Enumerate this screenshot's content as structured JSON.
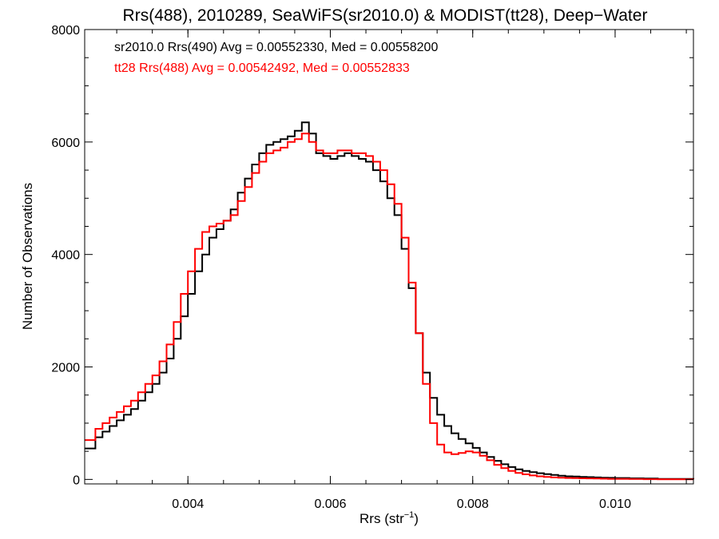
{
  "chart_data": {
    "type": "line",
    "step": true,
    "title": "Rrs(488), 2010289, SeaWiFS(sr2010.0) & MODIST(tt28), Deep−Water",
    "xlabel_main": "Rrs (str",
    "xlabel_sup": "−1",
    "xlabel_end": ")",
    "ylabel": "Number of Observations",
    "xlim": [
      0.00255,
      0.0111
    ],
    "ylim": [
      -80,
      8000
    ],
    "x_ticks": [
      {
        "value": 0.004,
        "label": "0.004"
      },
      {
        "value": 0.006,
        "label": "0.006"
      },
      {
        "value": 0.008,
        "label": "0.008"
      },
      {
        "value": 0.01,
        "label": "0.010"
      }
    ],
    "y_ticks": [
      {
        "value": 0,
        "label": "0"
      },
      {
        "value": 2000,
        "label": "2000"
      },
      {
        "value": 4000,
        "label": "4000"
      },
      {
        "value": 6000,
        "label": "6000"
      },
      {
        "value": 8000,
        "label": "8000"
      }
    ],
    "grid": false,
    "legend_position": "top-left",
    "series": [
      {
        "name": "sr2010.0 Rrs(490) Avg = 0.00552330, Med = 0.00558200",
        "color": "#000000",
        "x": [
          0.00255,
          0.0027,
          0.0028,
          0.0029,
          0.003,
          0.0031,
          0.0032,
          0.0033,
          0.0034,
          0.0035,
          0.0036,
          0.0037,
          0.0038,
          0.0039,
          0.004,
          0.0041,
          0.0042,
          0.0043,
          0.0044,
          0.0045,
          0.0046,
          0.0047,
          0.0048,
          0.0049,
          0.005,
          0.0051,
          0.0052,
          0.0053,
          0.0054,
          0.0055,
          0.0056,
          0.0057,
          0.0058,
          0.0059,
          0.006,
          0.0061,
          0.0062,
          0.0063,
          0.0064,
          0.0065,
          0.0066,
          0.0067,
          0.0068,
          0.0069,
          0.007,
          0.0071,
          0.0072,
          0.0073,
          0.0074,
          0.0075,
          0.0076,
          0.0077,
          0.0078,
          0.0079,
          0.008,
          0.0081,
          0.0082,
          0.0083,
          0.0084,
          0.0085,
          0.0086,
          0.0087,
          0.0088,
          0.0089,
          0.009,
          0.0091,
          0.0092,
          0.0093,
          0.0094,
          0.0095,
          0.0096,
          0.0097,
          0.0098,
          0.0099,
          0.01,
          0.0102,
          0.0104,
          0.0106,
          0.0108,
          0.0111
        ],
        "y": [
          550,
          750,
          850,
          950,
          1050,
          1150,
          1250,
          1400,
          1550,
          1700,
          1900,
          2150,
          2500,
          2900,
          3300,
          3700,
          4000,
          4300,
          4450,
          4600,
          4800,
          5100,
          5350,
          5600,
          5800,
          5950,
          6000,
          6050,
          6100,
          6200,
          6350,
          6150,
          5800,
          5750,
          5700,
          5750,
          5800,
          5750,
          5700,
          5650,
          5500,
          5300,
          5000,
          4700,
          4100,
          3400,
          2600,
          1900,
          1450,
          1150,
          950,
          820,
          720,
          640,
          560,
          480,
          400,
          330,
          270,
          220,
          180,
          150,
          130,
          110,
          95,
          80,
          65,
          55,
          50,
          45,
          40,
          35,
          30,
          28,
          25,
          20,
          15,
          10,
          8,
          5
        ]
      },
      {
        "name": "tt28 Rrs(488) Avg = 0.00542492, Med = 0.00552833",
        "color": "#ff0000",
        "x": [
          0.00255,
          0.0027,
          0.0028,
          0.0029,
          0.003,
          0.0031,
          0.0032,
          0.0033,
          0.0034,
          0.0035,
          0.0036,
          0.0037,
          0.0038,
          0.0039,
          0.004,
          0.0041,
          0.0042,
          0.0043,
          0.0044,
          0.0045,
          0.0046,
          0.0047,
          0.0048,
          0.0049,
          0.005,
          0.0051,
          0.0052,
          0.0053,
          0.0054,
          0.0055,
          0.0056,
          0.0057,
          0.0058,
          0.0059,
          0.006,
          0.0061,
          0.0062,
          0.0063,
          0.0064,
          0.0065,
          0.0066,
          0.0067,
          0.0068,
          0.0069,
          0.007,
          0.0071,
          0.0072,
          0.0073,
          0.0074,
          0.0075,
          0.0076,
          0.0077,
          0.0078,
          0.0079,
          0.008,
          0.0081,
          0.0082,
          0.0083,
          0.0084,
          0.0085,
          0.0086,
          0.0087,
          0.0088,
          0.0089,
          0.009,
          0.0091,
          0.0092,
          0.0093,
          0.0094,
          0.0095,
          0.0096,
          0.0097,
          0.0098,
          0.0099,
          0.01,
          0.0102,
          0.0104,
          0.0106,
          0.0108,
          0.0111
        ],
        "y": [
          700,
          900,
          1000,
          1100,
          1200,
          1300,
          1400,
          1550,
          1700,
          1850,
          2100,
          2400,
          2800,
          3300,
          3700,
          4100,
          4400,
          4500,
          4550,
          4600,
          4700,
          4950,
          5200,
          5450,
          5650,
          5800,
          5850,
          5900,
          6000,
          6050,
          6150,
          6000,
          5850,
          5800,
          5800,
          5850,
          5850,
          5800,
          5800,
          5750,
          5650,
          5500,
          5250,
          4900,
          4300,
          3500,
          2600,
          1700,
          1000,
          620,
          480,
          450,
          470,
          500,
          480,
          420,
          340,
          260,
          200,
          150,
          115,
          90,
          70,
          55,
          45,
          35,
          30,
          25,
          22,
          20,
          18,
          15,
          12,
          10,
          8,
          6,
          4,
          3,
          2,
          1
        ]
      }
    ]
  }
}
